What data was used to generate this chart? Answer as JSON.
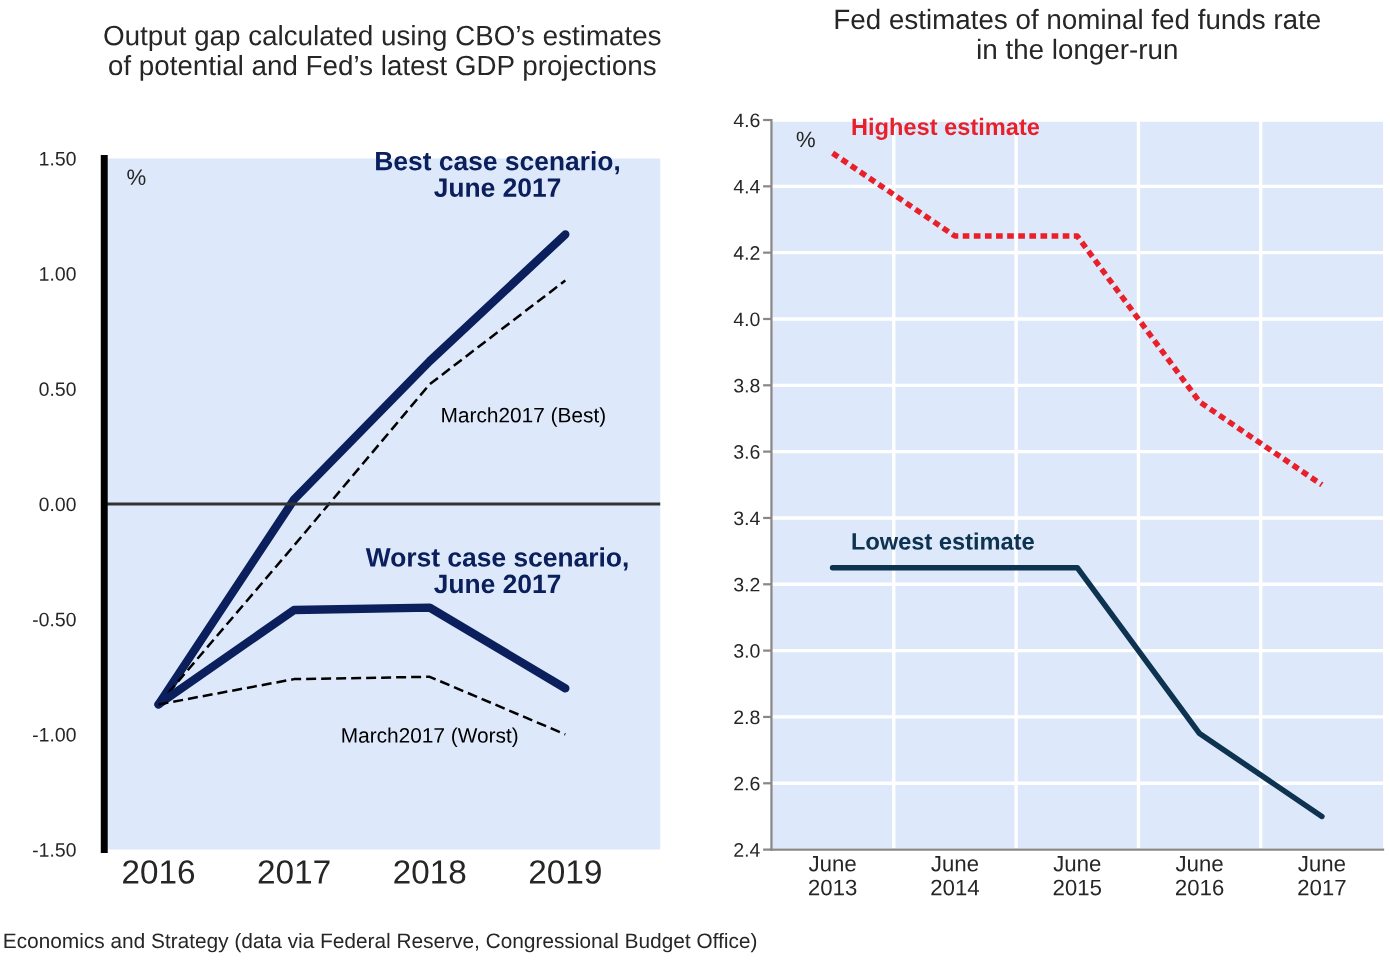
{
  "chart_data": [
    {
      "type": "line",
      "title": "Output gap calculated using CBO’s estimates\nof potential and Fed’s latest GDP projections",
      "ylabel": "%",
      "categories": [
        "2016",
        "2017",
        "2018",
        "2019"
      ],
      "series": [
        {
          "name": "Best case scenario,\nJune 2017",
          "color": "#0b1f5c",
          "line_style": "solid",
          "values": [
            -0.87,
            0.02,
            0.62,
            1.17
          ]
        },
        {
          "name": "March2017 (Best)",
          "color": "#000000",
          "line_style": "dashed",
          "values": [
            -0.87,
            -0.18,
            0.52,
            0.97
          ]
        },
        {
          "name": "Worst case scenario,\nJune 2017",
          "color": "#0b1f5c",
          "line_style": "solid",
          "values": [
            -0.87,
            -0.46,
            -0.45,
            -0.8
          ]
        },
        {
          "name": "March2017 (Worst)",
          "color": "#000000",
          "line_style": "dashed",
          "values": [
            -0.87,
            -0.76,
            -0.75,
            -1.0
          ]
        }
      ],
      "ylim": [
        -1.5,
        1.5
      ],
      "yticks": [
        {
          "value": 1.5,
          "label": "1.50"
        },
        {
          "value": 1.0,
          "label": "1.00"
        },
        {
          "value": 0.5,
          "label": "0.50"
        },
        {
          "value": 0.0,
          "label": "0.00"
        },
        {
          "value": -0.5,
          "label": "-0.50"
        },
        {
          "value": -1.0,
          "label": "-1.00"
        },
        {
          "value": -1.5,
          "label": "-1.50"
        }
      ],
      "ref_lines": [
        {
          "axis": "y",
          "value": 0,
          "color": "#333333"
        }
      ],
      "grid": false,
      "legend": false,
      "marker": "none",
      "annotations": [
        "Economics and Strategy (data via Federal Reserve, Congressional Budget Office)"
      ]
    },
    {
      "type": "line",
      "title": "Fed estimates of nominal fed funds rate\nin the longer-run",
      "ylabel": "%",
      "categories": [
        "June\n2013",
        "June\n2014",
        "June\n2015",
        "June\n2016",
        "June\n2017"
      ],
      "series": [
        {
          "name": "Highest estimate",
          "color": "#e8202a",
          "line_style": "dotted",
          "values": [
            4.5,
            4.25,
            4.25,
            3.75,
            3.5
          ]
        },
        {
          "name": "Lowest estimate",
          "color": "#0d3350",
          "line_style": "solid",
          "values": [
            3.25,
            3.25,
            3.25,
            2.75,
            2.5
          ]
        }
      ],
      "ylim": [
        2.4,
        4.6
      ],
      "yticks": [
        {
          "value": 2.4,
          "label": "2.4"
        },
        {
          "value": 2.6,
          "label": "2.6"
        },
        {
          "value": 2.8,
          "label": "2.8"
        },
        {
          "value": 3.0,
          "label": "3.0"
        },
        {
          "value": 3.2,
          "label": "3.2"
        },
        {
          "value": 3.4,
          "label": "3.4"
        },
        {
          "value": 3.6,
          "label": "3.6"
        },
        {
          "value": 3.8,
          "label": "3.8"
        },
        {
          "value": 4.0,
          "label": "4.0"
        },
        {
          "value": 4.2,
          "label": "4.2"
        },
        {
          "value": 4.4,
          "label": "4.4"
        },
        {
          "value": 4.6,
          "label": "4.6"
        }
      ],
      "grid": true,
      "legend": false,
      "marker": "none"
    }
  ]
}
